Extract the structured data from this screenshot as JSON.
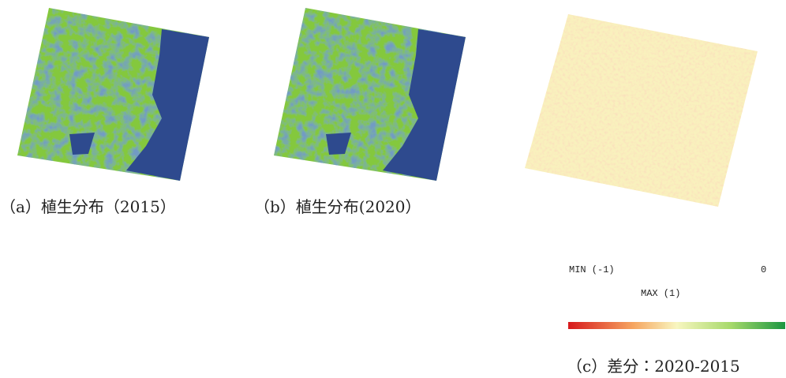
{
  "panels": [
    {
      "caption": "（a）植生分布（2015）"
    },
    {
      "caption": "（b）植生分布(2020）"
    },
    {
      "caption": "（c）差分：2020-2015"
    }
  ],
  "legend": {
    "min_label": "MIN (-1)",
    "zero_label": "0",
    "max_label": "MAX (1)"
  }
}
